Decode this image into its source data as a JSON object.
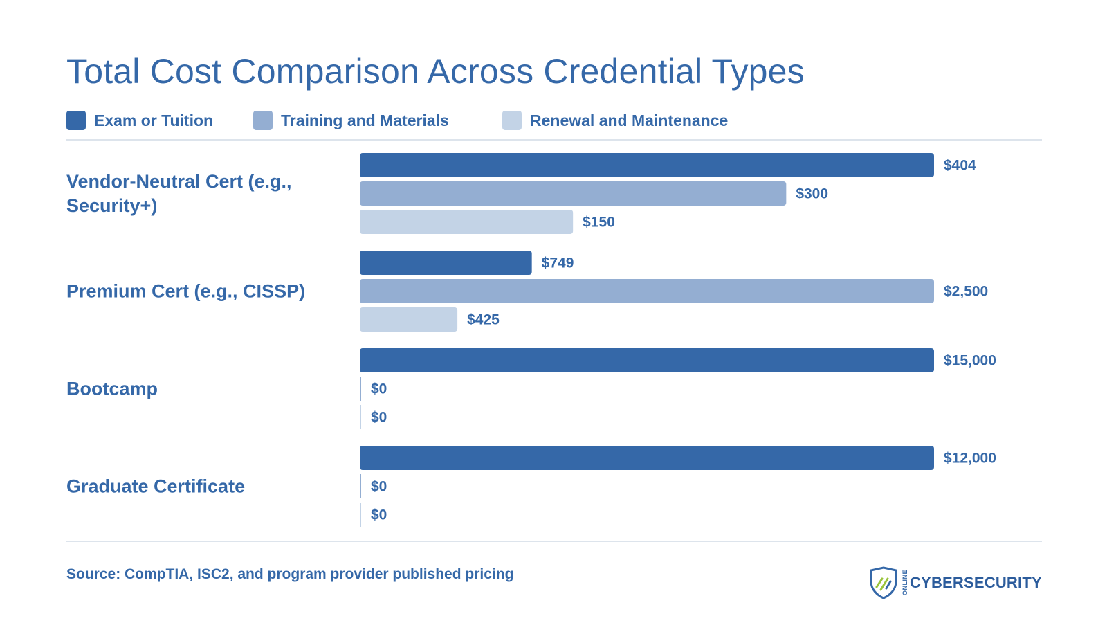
{
  "title": "Total Cost Comparison Across Credential Types",
  "legend": [
    {
      "label": "Exam or Tuition",
      "color": "#3568a8"
    },
    {
      "label": "Training and Materials",
      "color": "#94aed2"
    },
    {
      "label": "Renewal and Maintenance",
      "color": "#c3d3e6"
    }
  ],
  "chart_data": {
    "type": "bar",
    "orientation": "horizontal",
    "title": "Total Cost Comparison Across Credential Types",
    "categories": [
      "Vendor-Neutral Cert (e.g., Security+)",
      "Premium Cert (e.g., CISSP)",
      "Bootcamp",
      "Graduate Certificate"
    ],
    "series": [
      {
        "name": "Exam or Tuition",
        "color": "#3568a8",
        "values": [
          404,
          749,
          15000,
          12000
        ],
        "labels": [
          "$404",
          "$749",
          "$15,000",
          "$12,000"
        ]
      },
      {
        "name": "Training and Materials",
        "color": "#94aed2",
        "values": [
          300,
          2500,
          0,
          0
        ],
        "labels": [
          "$300",
          "$2,500",
          "$0",
          "$0"
        ]
      },
      {
        "name": "Renewal and Maintenance",
        "color": "#c3d3e6",
        "values": [
          150,
          425,
          0,
          0
        ],
        "labels": [
          "$150",
          "$425",
          "$0",
          "$0"
        ]
      }
    ],
    "grid": false,
    "legend_position": "top"
  },
  "source": "Source: CompTIA, ISC2, and program provider published pricing",
  "logo": {
    "small_text": "ONLINE",
    "word": "CYBERSECURITY"
  }
}
